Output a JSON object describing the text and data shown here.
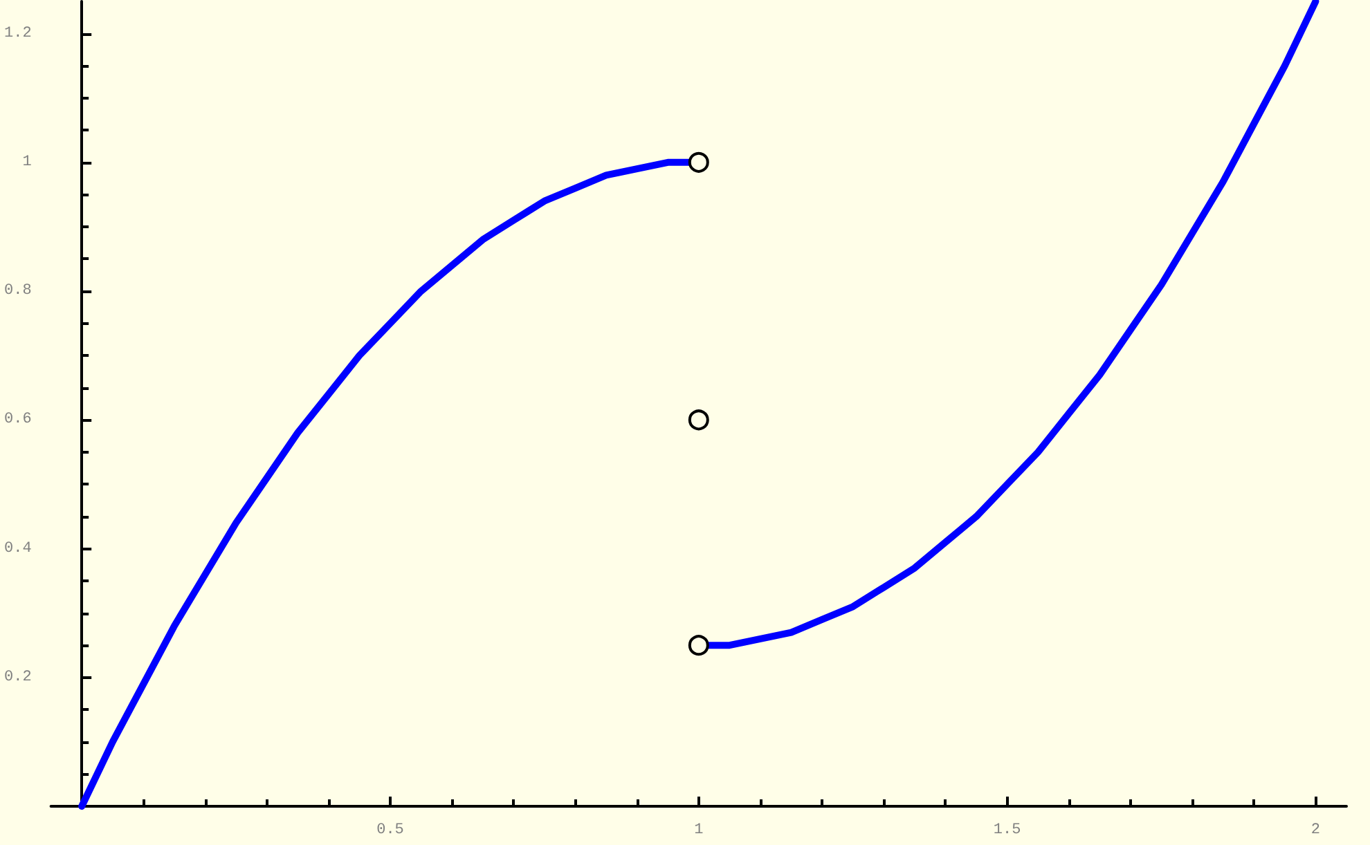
{
  "chart_data": {
    "type": "line",
    "marker": "none",
    "xlim": [
      -0.05,
      2.05
    ],
    "ylim": [
      0,
      1.25
    ],
    "xticks": [
      {
        "value": 0.1,
        "label": null
      },
      {
        "value": 0.2,
        "label": null
      },
      {
        "value": 0.3,
        "label": null
      },
      {
        "value": 0.4,
        "label": null
      },
      0.5,
      {
        "value": 0.6,
        "label": null
      },
      {
        "value": 0.7,
        "label": null
      },
      {
        "value": 0.8,
        "label": null
      },
      {
        "value": 0.9,
        "label": null
      },
      1,
      {
        "value": 1.1,
        "label": null
      },
      {
        "value": 1.2,
        "label": null
      },
      {
        "value": 1.3,
        "label": null
      },
      {
        "value": 1.4,
        "label": null
      },
      1.5,
      {
        "value": 1.6,
        "label": null
      },
      {
        "value": 1.7,
        "label": null
      },
      {
        "value": 1.8,
        "label": null
      },
      {
        "value": 1.9,
        "label": null
      },
      2
    ],
    "yticks": [
      {
        "value": 0.05,
        "label": null
      },
      {
        "value": 0.1,
        "label": null
      },
      {
        "value": 0.15,
        "label": null
      },
      0.2,
      {
        "value": 0.25,
        "label": null
      },
      {
        "value": 0.3,
        "label": null
      },
      {
        "value": 0.35,
        "label": null
      },
      0.4,
      {
        "value": 0.45,
        "label": null
      },
      {
        "value": 0.5,
        "label": null
      },
      {
        "value": 0.55,
        "label": null
      },
      0.6,
      {
        "value": 0.65,
        "label": null
      },
      {
        "value": 0.7,
        "label": null
      },
      {
        "value": 0.75,
        "label": null
      },
      0.8,
      {
        "value": 0.85,
        "label": null
      },
      {
        "value": 0.9,
        "label": null
      },
      {
        "value": 0.95,
        "label": null
      },
      1,
      {
        "value": 1.05,
        "label": null
      },
      {
        "value": 1.1,
        "label": null
      },
      {
        "value": 1.15,
        "label": null
      },
      1.2
    ],
    "series": [
      {
        "color": "#0000ff",
        "x": [
          0,
          0.05,
          0.1,
          0.15,
          0.2,
          0.25,
          0.3,
          0.35,
          0.4,
          0.45,
          0.5,
          0.55,
          0.6,
          0.65,
          0.7,
          0.75,
          0.8,
          0.85,
          0.9,
          0.95,
          1
        ],
        "values": [
          0,
          0.1,
          0.19,
          0.28,
          0.36,
          0.44,
          0.51,
          0.58,
          0.64,
          0.7,
          0.75,
          0.8,
          0.84,
          0.88,
          0.91,
          0.94,
          0.96,
          0.98,
          0.99,
          1,
          1
        ]
      },
      {
        "color": "#0000ff",
        "x": [
          1,
          1.05,
          1.1,
          1.15,
          1.2,
          1.25,
          1.3,
          1.35,
          1.4,
          1.45,
          1.5,
          1.55,
          1.6,
          1.65,
          1.7,
          1.75,
          1.8,
          1.85,
          1.9,
          1.95,
          2
        ],
        "values": [
          0.25,
          0.25,
          0.26,
          0.27,
          0.29,
          0.31,
          0.34,
          0.37,
          0.41,
          0.45,
          0.5,
          0.55,
          0.61,
          0.67,
          0.74,
          0.81,
          0.89,
          0.97,
          1.06,
          1.15,
          1.25
        ]
      },
      {
        "type": "scatter",
        "marker": "circle",
        "color": "#000000",
        "x": [
          1,
          1,
          1
        ],
        "values": [
          1,
          0.6,
          0.25
        ]
      }
    ]
  }
}
